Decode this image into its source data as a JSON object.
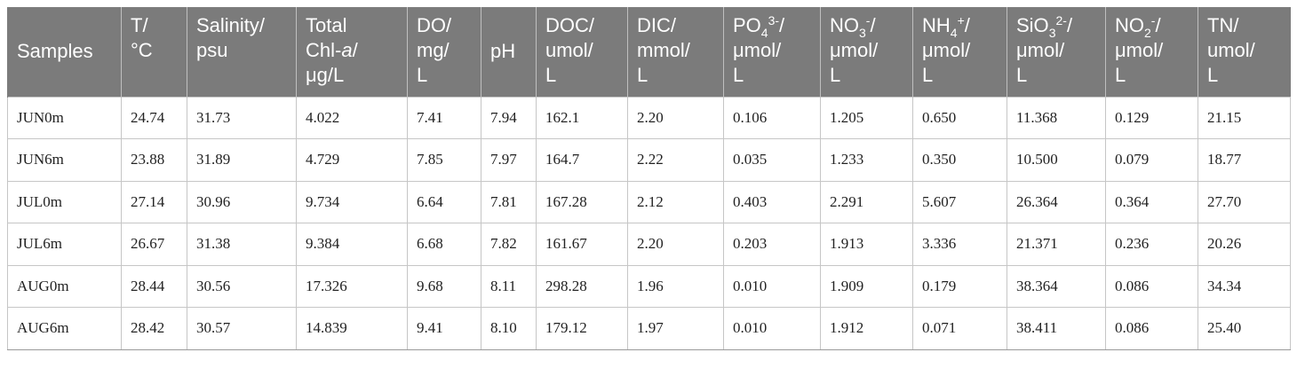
{
  "table": {
    "headers": {
      "samples": "Samples",
      "t": {
        "line1": "T/",
        "line2": "°C"
      },
      "salinity": {
        "line1": "Salinity/",
        "line2": "psu"
      },
      "chl": {
        "line1": "Total",
        "line2a": "Chl-",
        "line2b": "a",
        "line2c": "/",
        "line3": "μg/L"
      },
      "do": {
        "line1": "DO/",
        "line2": "mg/",
        "line3": "L"
      },
      "ph": "pH",
      "doc": {
        "line1": "DOC/",
        "line2": "umol/",
        "line3": "L"
      },
      "dic": {
        "line1": "DIC/",
        "line2": "mmol/",
        "line3": "L"
      },
      "po4": {
        "base": "PO",
        "sub": "4",
        "sup": "3-",
        "tail": "/",
        "line2": "μmol/",
        "line3": "L"
      },
      "no3": {
        "base": "NO",
        "sub": "3",
        "sup": "-",
        "tail": "/",
        "line2": "μmol/",
        "line3": "L"
      },
      "nh4": {
        "base": "NH",
        "sub": "4",
        "sup": "+",
        "tail": "/",
        "line2": "μmol/",
        "line3": "L"
      },
      "sio3": {
        "base": "SiO",
        "sub": "3",
        "sup": "2-",
        "tail": "/",
        "line2": "μmol/",
        "line3": "L"
      },
      "no2": {
        "base": "NO",
        "sub": "2",
        "sup": "-",
        "tail": "/",
        "line2": "μmol/",
        "line3": "L"
      },
      "tn": {
        "line1": "TN/",
        "line2": "umol/",
        "line3": "L"
      }
    },
    "rows": [
      [
        "JUN0m",
        "24.74",
        "31.73",
        "4.022",
        "7.41",
        "7.94",
        "162.1",
        "2.20",
        "0.106",
        "1.205",
        "0.650",
        "11.368",
        "0.129",
        "21.15"
      ],
      [
        "JUN6m",
        "23.88",
        "31.89",
        "4.729",
        "7.85",
        "7.97",
        "164.7",
        "2.22",
        "0.035",
        "1.233",
        "0.350",
        "10.500",
        "0.079",
        "18.77"
      ],
      [
        "JUL0m",
        "27.14",
        "30.96",
        "9.734",
        "6.64",
        "7.81",
        "167.28",
        "2.12",
        "0.403",
        "2.291",
        "5.607",
        "26.364",
        "0.364",
        "27.70"
      ],
      [
        "JUL6m",
        "26.67",
        "31.38",
        "9.384",
        "6.68",
        "7.82",
        "161.67",
        "2.20",
        "0.203",
        "1.913",
        "3.336",
        "21.371",
        "0.236",
        "20.26"
      ],
      [
        "AUG0m",
        "28.44",
        "30.56",
        "17.326",
        "9.68",
        "8.11",
        "298.28",
        "1.96",
        "0.010",
        "1.909",
        "0.179",
        "38.364",
        "0.086",
        "34.34"
      ],
      [
        "AUG6m",
        "28.42",
        "30.57",
        "14.839",
        "9.41",
        "8.10",
        "179.12",
        "1.97",
        "0.010",
        "1.912",
        "0.071",
        "38.411",
        "0.086",
        "25.40"
      ]
    ]
  }
}
